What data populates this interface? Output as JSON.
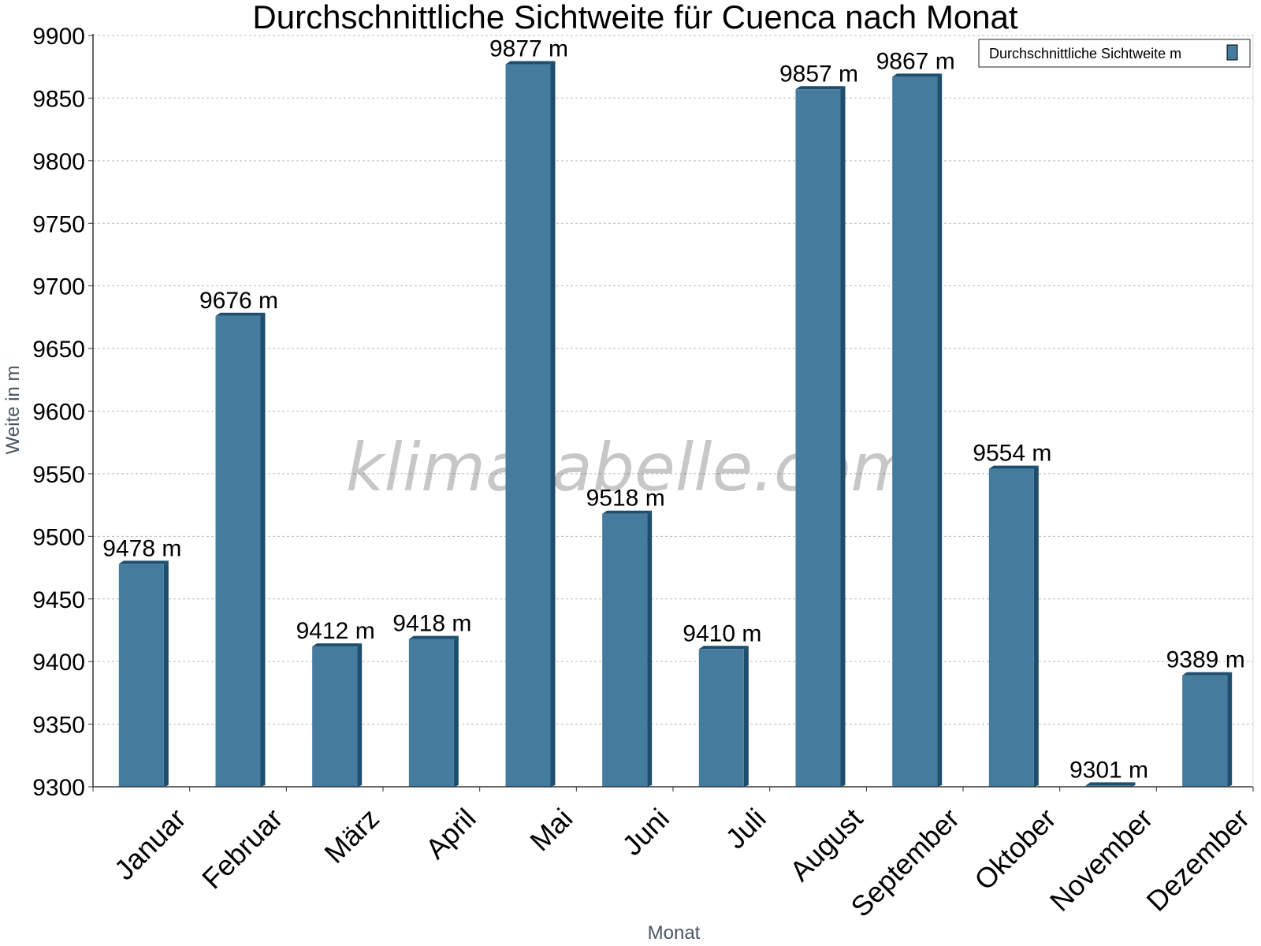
{
  "chart_data": {
    "type": "bar",
    "title": "Durchschnittliche Sichtweite für Cuenca nach Monat",
    "xlabel": "Monat",
    "ylabel": "Weite in m",
    "ylim": [
      9300,
      9900
    ],
    "yticks": [
      9300,
      9350,
      9400,
      9450,
      9500,
      9550,
      9600,
      9650,
      9700,
      9750,
      9800,
      9850,
      9900
    ],
    "grid": true,
    "legend_position": "top-right",
    "unit_suffix": " m",
    "categories": [
      "Januar",
      "Februar",
      "März",
      "April",
      "Mai",
      "Juni",
      "Juli",
      "August",
      "September",
      "Oktober",
      "November",
      "Dezember"
    ],
    "series": [
      {
        "name": "Durchschnittliche Sichtweite m",
        "color": "#457b9d",
        "shade_color": "#1d4e6e",
        "values": [
          9478,
          9676,
          9412,
          9418,
          9877,
          9518,
          9410,
          9857,
          9867,
          9554,
          9301,
          9389
        ]
      }
    ],
    "watermark": "klimatabelle.com"
  }
}
